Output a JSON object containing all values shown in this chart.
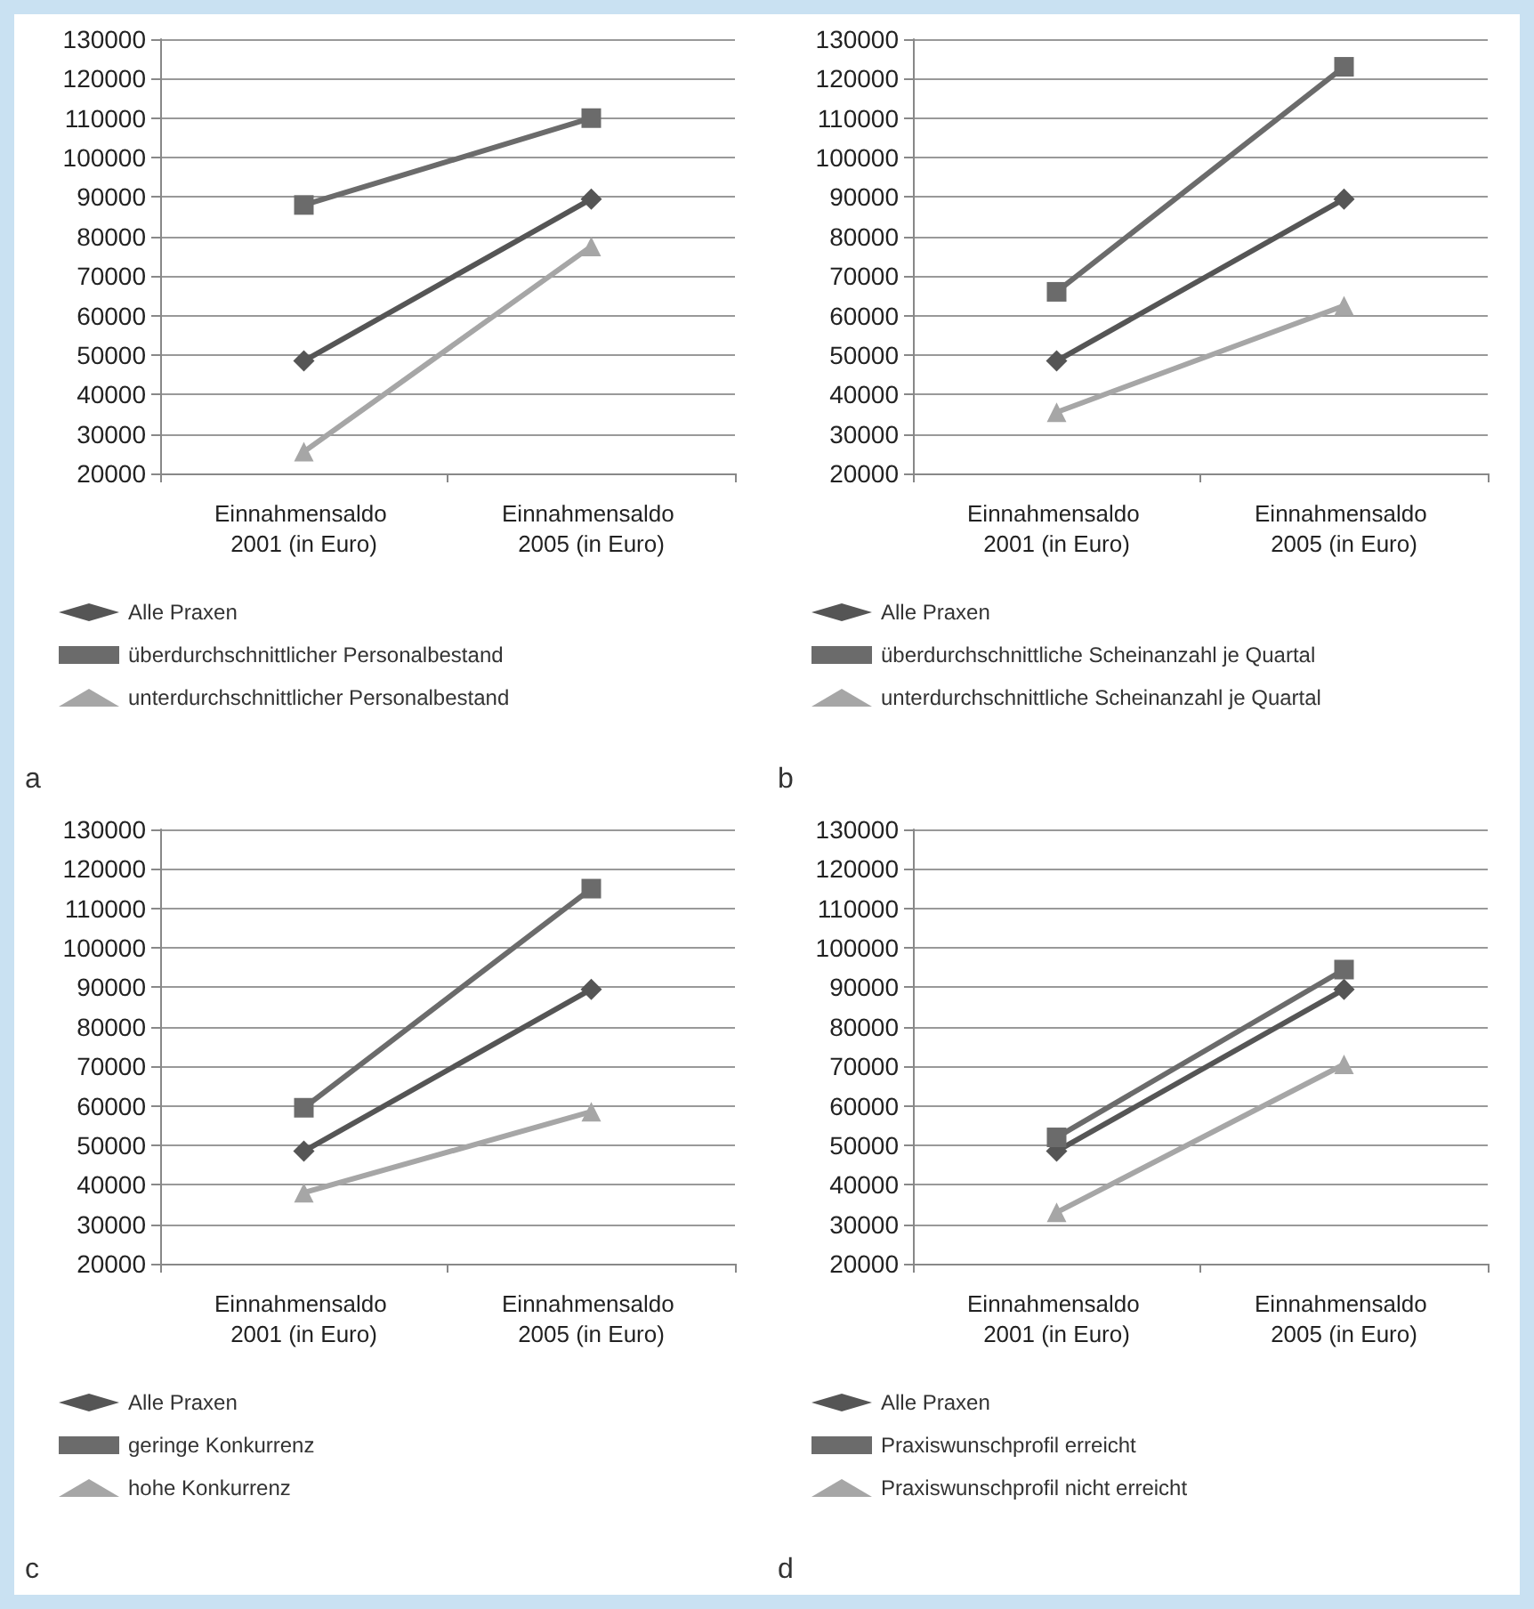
{
  "chart_data": [
    {
      "type": "line",
      "categories": [
        "Einnahmensaldo 2001 (in Euro)",
        "Einnahmensaldo 2005 (in Euro)"
      ],
      "ylim": [
        20000,
        130000
      ],
      "yticks": [
        20000,
        30000,
        40000,
        50000,
        60000,
        70000,
        80000,
        90000,
        100000,
        110000,
        120000,
        130000
      ],
      "grid": "y",
      "legend": "bottom",
      "annotations": [
        "a"
      ],
      "series": [
        {
          "name": "Alle Praxen",
          "color": "#555555",
          "marker": "diamond",
          "values": [
            48500,
            89500
          ]
        },
        {
          "name": "überdurchschnittlicher Personalbestand",
          "color": "#6b6b6b",
          "marker": "square",
          "values": [
            88000,
            110000
          ]
        },
        {
          "name": "unterdurchschnittlicher Personalbestand",
          "color": "#a6a6a6",
          "marker": "triangle",
          "values": [
            25500,
            77500
          ]
        }
      ]
    },
    {
      "type": "line",
      "categories": [
        "Einnahmensaldo 2001 (in Euro)",
        "Einnahmensaldo 2005 (in Euro)"
      ],
      "ylim": [
        20000,
        130000
      ],
      "yticks": [
        20000,
        30000,
        40000,
        50000,
        60000,
        70000,
        80000,
        90000,
        100000,
        110000,
        120000,
        130000
      ],
      "grid": "y",
      "legend": "bottom",
      "annotations": [
        "b"
      ],
      "series": [
        {
          "name": "Alle Praxen",
          "color": "#555555",
          "marker": "diamond",
          "values": [
            48500,
            89500
          ]
        },
        {
          "name": "überdurchschnittliche Scheinanzahl je Quartal",
          "color": "#6b6b6b",
          "marker": "square",
          "values": [
            66000,
            123000
          ]
        },
        {
          "name": "unterdurchschnittliche Scheinanzahl je Quartal",
          "color": "#a6a6a6",
          "marker": "triangle",
          "values": [
            35500,
            62500
          ]
        }
      ]
    },
    {
      "type": "line",
      "categories": [
        "Einnahmensaldo 2001 (in Euro)",
        "Einnahmensaldo 2005 (in Euro)"
      ],
      "ylim": [
        20000,
        130000
      ],
      "yticks": [
        20000,
        30000,
        40000,
        50000,
        60000,
        70000,
        80000,
        90000,
        100000,
        110000,
        120000,
        130000
      ],
      "grid": "y",
      "legend": "bottom",
      "annotations": [
        "c"
      ],
      "series": [
        {
          "name": "Alle Praxen",
          "color": "#555555",
          "marker": "diamond",
          "values": [
            48500,
            89500
          ]
        },
        {
          "name": "geringe Konkurrenz",
          "color": "#6b6b6b",
          "marker": "square",
          "values": [
            59500,
            115000
          ]
        },
        {
          "name": "hohe Konkurrenz",
          "color": "#a6a6a6",
          "marker": "triangle",
          "values": [
            38000,
            58500
          ]
        }
      ]
    },
    {
      "type": "line",
      "categories": [
        "Einnahmensaldo 2001 (in Euro)",
        "Einnahmensaldo 2005 (in Euro)"
      ],
      "ylim": [
        20000,
        130000
      ],
      "yticks": [
        20000,
        30000,
        40000,
        50000,
        60000,
        70000,
        80000,
        90000,
        100000,
        110000,
        120000,
        130000
      ],
      "grid": "y",
      "legend": "bottom",
      "annotations": [
        "d"
      ],
      "series": [
        {
          "name": "Alle Praxen",
          "color": "#555555",
          "marker": "diamond",
          "values": [
            48500,
            89500
          ]
        },
        {
          "name": "Praxiswunschprofil erreicht",
          "color": "#6b6b6b",
          "marker": "square",
          "values": [
            52000,
            94500
          ]
        },
        {
          "name": "Praxiswunschprofil nicht erreicht",
          "color": "#a6a6a6",
          "marker": "triangle",
          "values": [
            33000,
            70500
          ]
        }
      ]
    }
  ]
}
